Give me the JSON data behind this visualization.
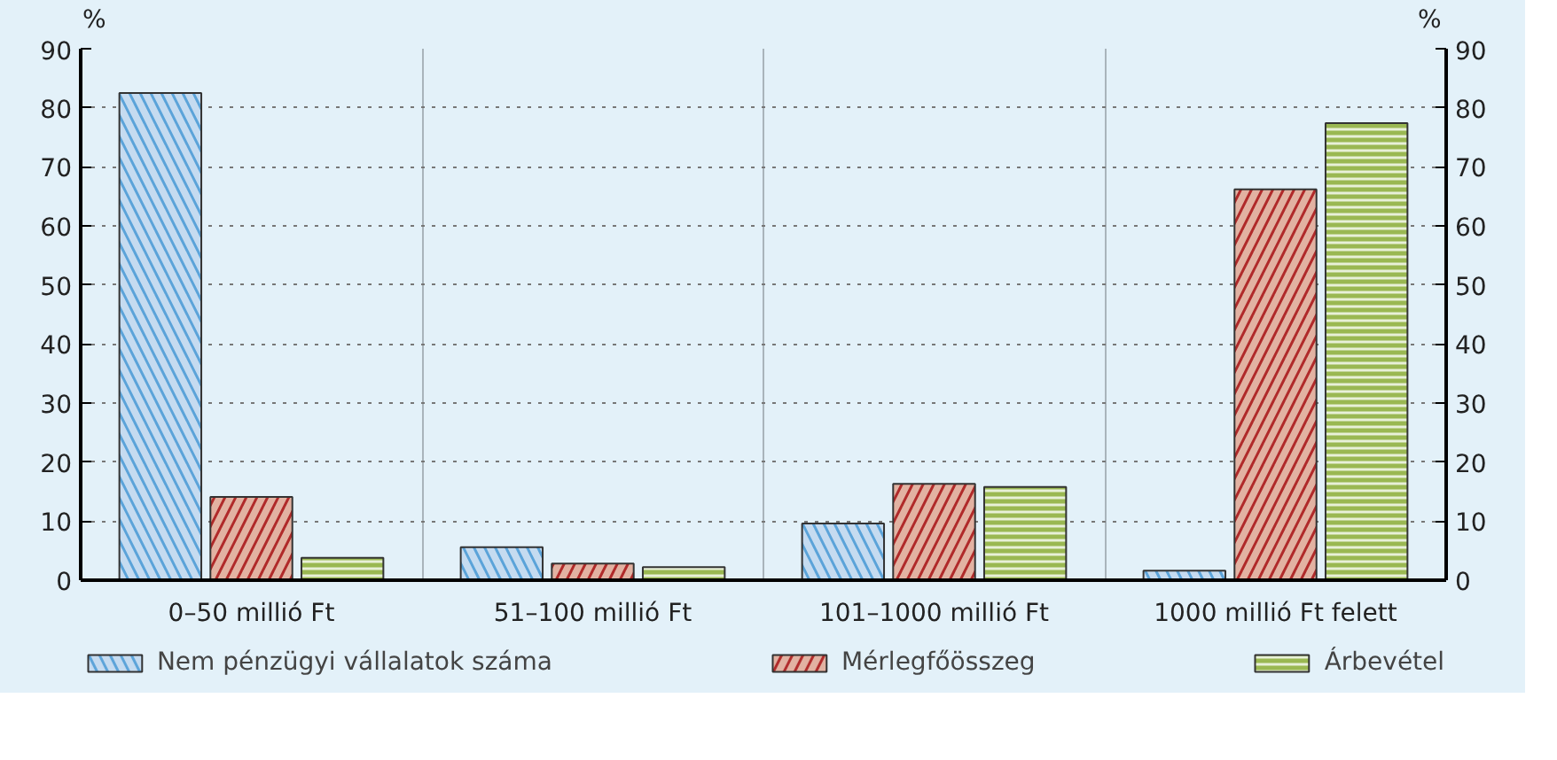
{
  "chart_data": {
    "type": "bar",
    "ylabel": "%",
    "y2label": "%",
    "categories": [
      "0–50 millió Ft",
      "51–100 millió Ft",
      "101–1000 millió Ft",
      "1000 millió Ft felett"
    ],
    "series": [
      {
        "name": "Nem pénzügyi vállalatok száma",
        "color": "#c5dbf0",
        "values": [
          82.5,
          5.6,
          9.6,
          1.6
        ]
      },
      {
        "name": "Mérlegfőösszeg",
        "color": "#e2b2a2",
        "values": [
          14.1,
          2.8,
          16.3,
          66.2
        ]
      },
      {
        "name": "Árbevétel",
        "color": "#9ab852",
        "values": [
          3.8,
          2.2,
          15.8,
          77.4
        ]
      }
    ],
    "ylim": [
      0,
      90
    ],
    "yticks": [
      0,
      10,
      20,
      30,
      40,
      50,
      60,
      70,
      80,
      90
    ],
    "y2lim": [
      0,
      90
    ],
    "y2ticks": [
      0,
      10,
      20,
      30,
      40,
      50,
      60,
      70,
      80,
      90
    ],
    "grid": true,
    "legend": "bottom"
  }
}
